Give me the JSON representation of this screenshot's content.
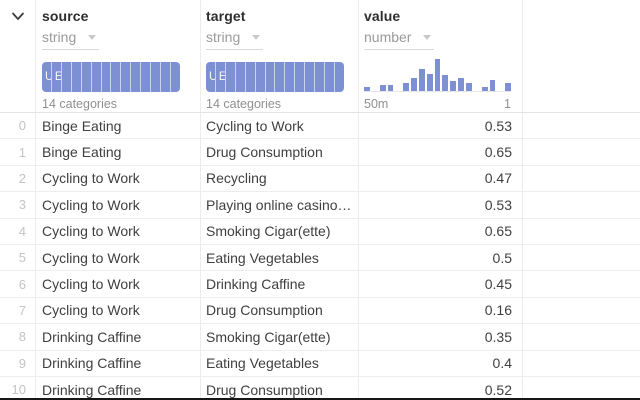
{
  "colors": {
    "accent_blue": "#7e90d4",
    "header_text": "#2e2e2e",
    "type_text": "#9a9a9a",
    "cell_text": "#3f3f3f",
    "row_index_text": "#c3c3c3"
  },
  "controls": {
    "collapse_icon": "chevron-down"
  },
  "columns": [
    {
      "key": "index",
      "name": "",
      "type": ""
    },
    {
      "key": "source",
      "name": "source",
      "type": "string",
      "summary": {
        "kind": "categories",
        "caption": "14 categories",
        "segment_count": 14,
        "visible_segment_labels": [
          "U",
          "Ea"
        ]
      }
    },
    {
      "key": "target",
      "name": "target",
      "type": "string",
      "summary": {
        "kind": "categories",
        "caption": "14 categories",
        "segment_count": 14,
        "visible_segment_labels": [
          "U",
          "Ea"
        ]
      }
    },
    {
      "key": "value",
      "name": "value",
      "type": "number",
      "summary": {
        "kind": "histogram",
        "min_label": "50m",
        "max_label": "1",
        "bins": [
          12,
          0,
          20,
          20,
          0,
          26,
          42,
          70,
          54,
          100,
          50,
          30,
          42,
          26,
          0,
          14,
          34,
          0,
          26
        ]
      }
    }
  ],
  "rows": [
    {
      "index": "0",
      "source": "Binge Eating",
      "target": "Cycling to Work",
      "value": "0.53"
    },
    {
      "index": "1",
      "source": "Binge Eating",
      "target": "Drug Consumption",
      "value": "0.65"
    },
    {
      "index": "2",
      "source": "Cycling to Work",
      "target": "Recycling",
      "value": "0.47"
    },
    {
      "index": "3",
      "source": "Cycling to Work",
      "target": "Playing online casino…",
      "value": "0.53"
    },
    {
      "index": "4",
      "source": "Cycling to Work",
      "target": "Smoking Cigar(ette)",
      "value": "0.65"
    },
    {
      "index": "5",
      "source": "Cycling to Work",
      "target": "Eating Vegetables",
      "value": "0.5"
    },
    {
      "index": "6",
      "source": "Cycling to Work",
      "target": "Drinking Caffine",
      "value": "0.45"
    },
    {
      "index": "7",
      "source": "Cycling to Work",
      "target": "Drug Consumption",
      "value": "0.16"
    },
    {
      "index": "8",
      "source": "Drinking Caffine",
      "target": "Smoking Cigar(ette)",
      "value": "0.35"
    },
    {
      "index": "9",
      "source": "Drinking Caffine",
      "target": "Eating Vegetables",
      "value": "0.4"
    },
    {
      "index": "10",
      "source": "Drinking Caffine",
      "target": "Drug Consumption",
      "value": "0.52"
    }
  ]
}
